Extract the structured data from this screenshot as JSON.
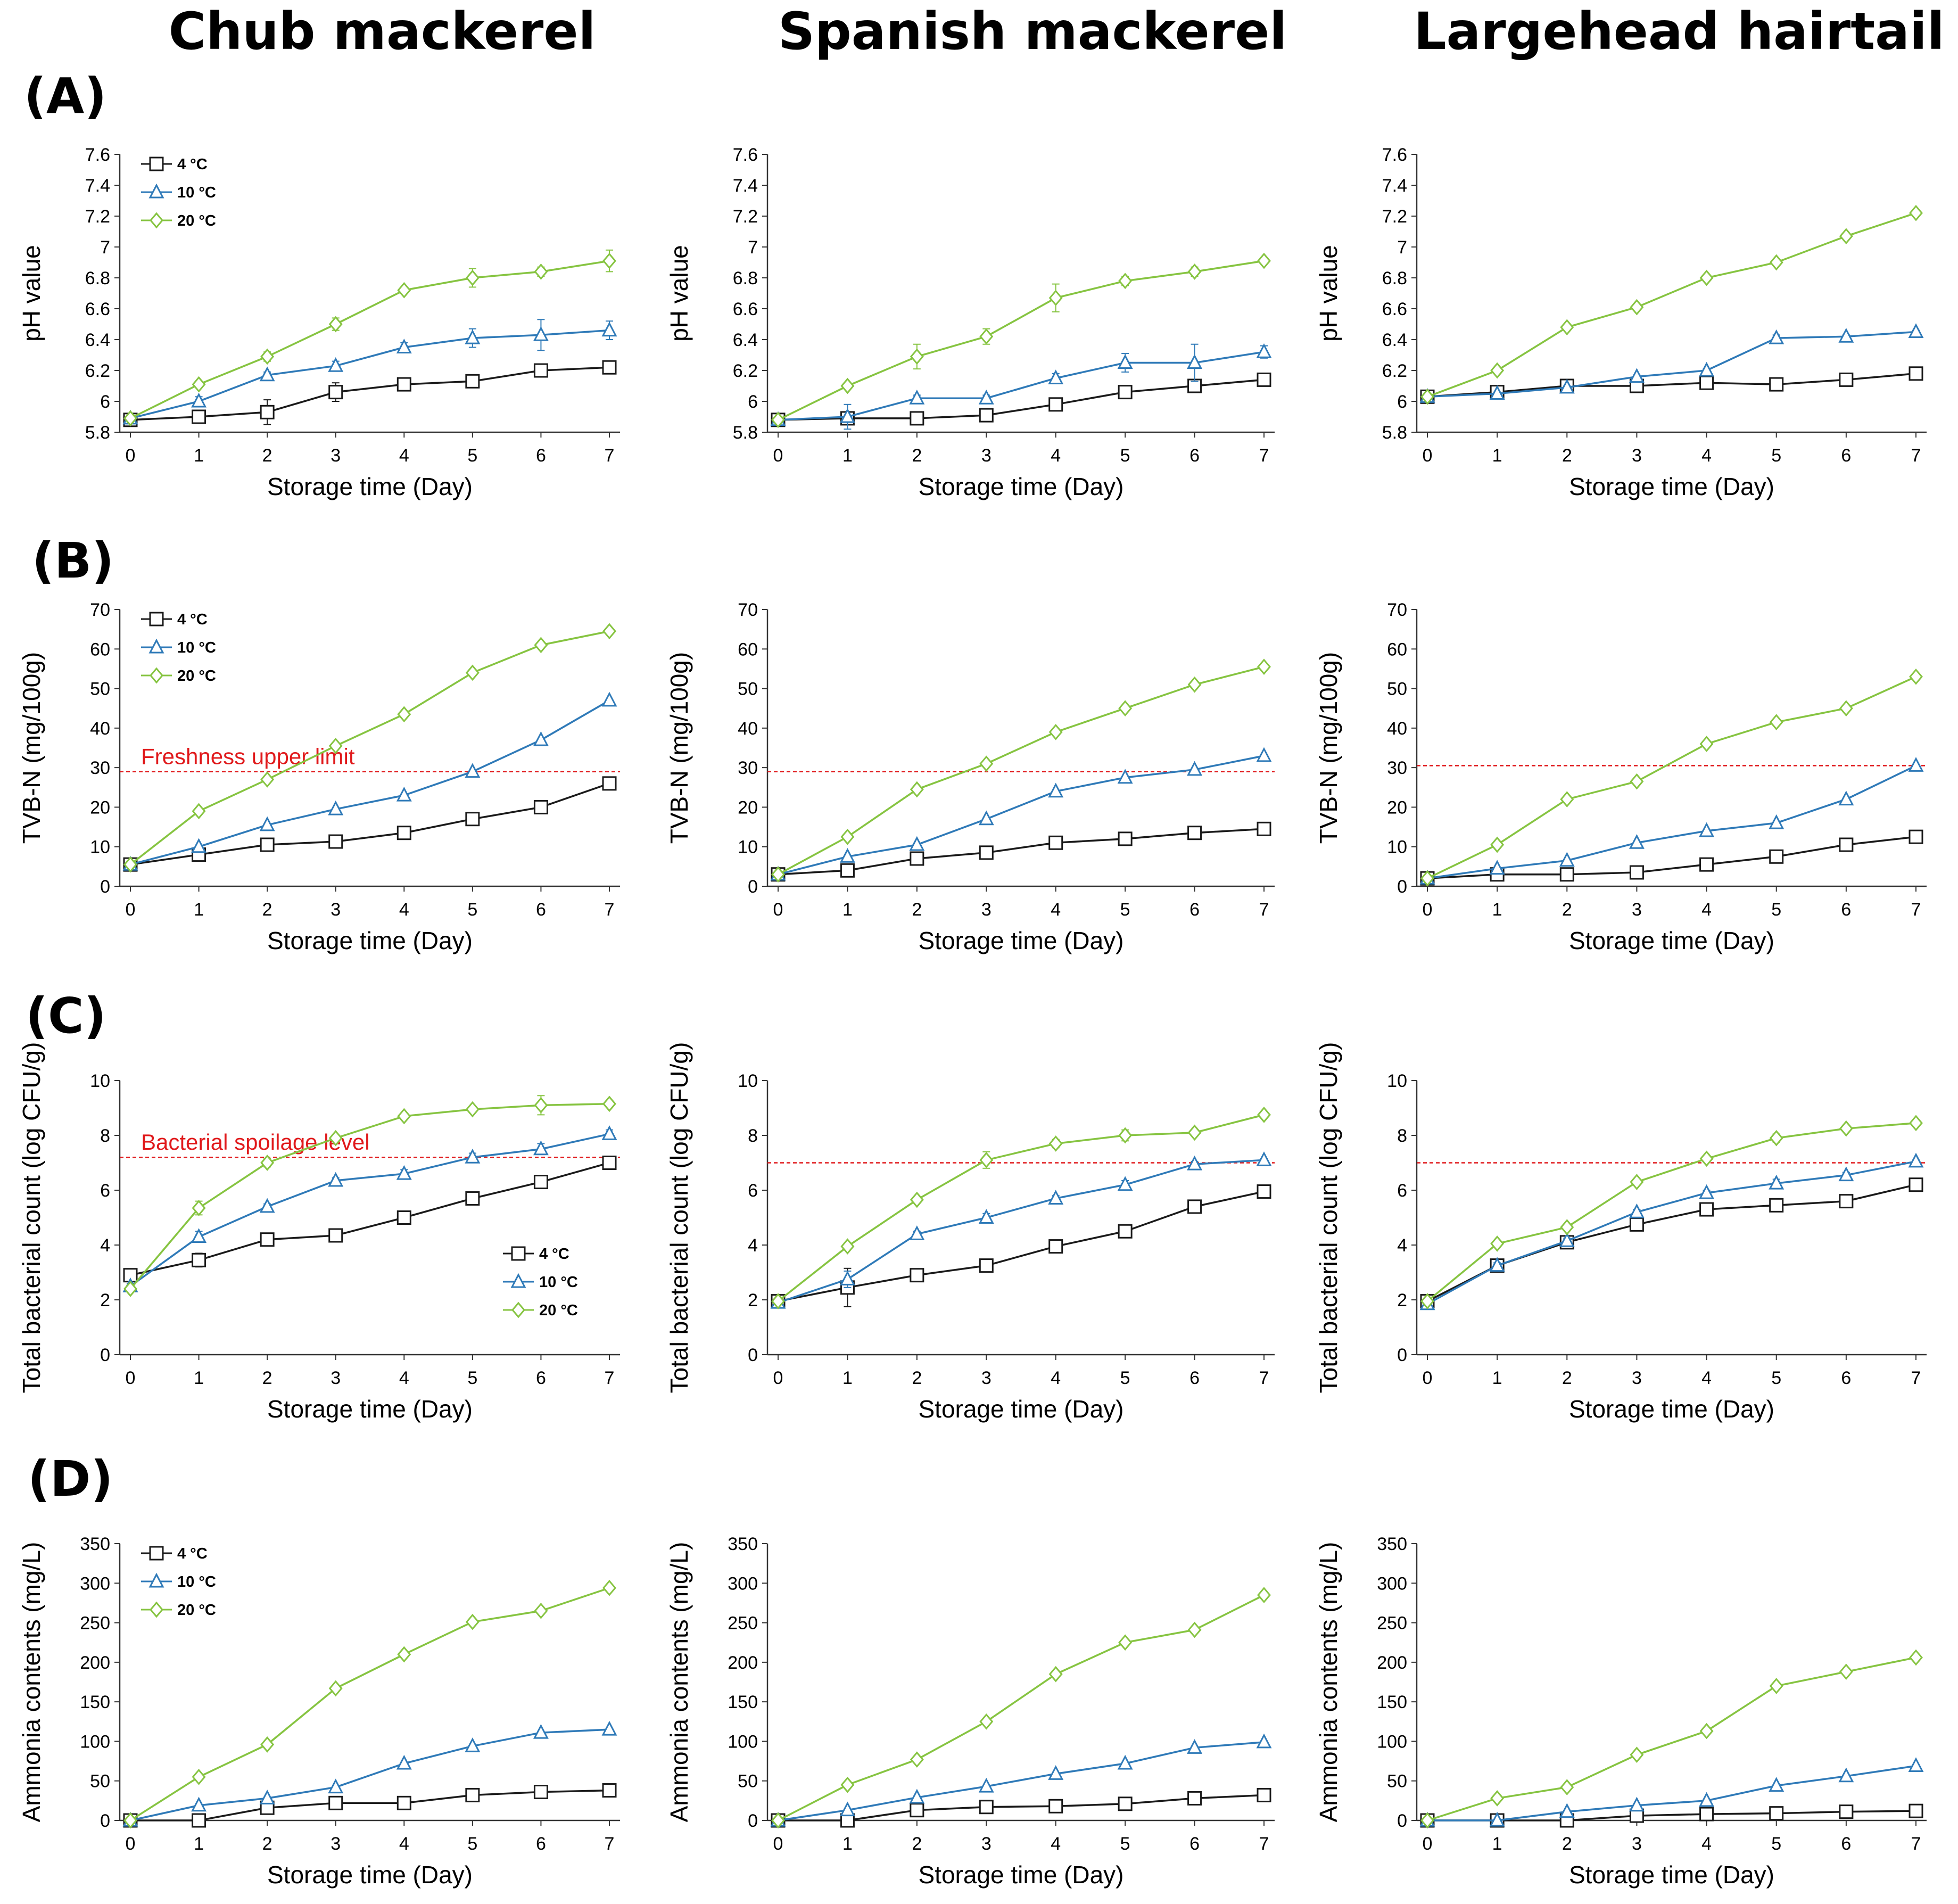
{
  "column_titles": [
    "Chub mackerel",
    "Spanish mackerel",
    "Largehead hairtail"
  ],
  "row_labels": [
    "(A)",
    "(B)",
    "(C)",
    "(D)"
  ],
  "colors": {
    "4 °C": "#1a1a1a",
    "10 °C": "#2f7ab8",
    "20 °C": "#86c441",
    "threshold": "#e0191b"
  },
  "chart_data": [
    {
      "id": "A-chub",
      "type": "line",
      "row": 0,
      "col": 0,
      "xlabel": "Storage time (Day)",
      "ylabel": "pH value",
      "ylim": [
        5.8,
        7.6
      ],
      "yticks": [
        5.8,
        6,
        6.2,
        6.4,
        6.6,
        6.8,
        7,
        7.2,
        7.4,
        7.6
      ],
      "x": [
        0,
        1,
        2,
        3,
        4,
        5,
        6,
        7
      ],
      "legend": "top-left",
      "series": [
        {
          "name": "4 °C",
          "values": [
            5.88,
            5.9,
            5.93,
            6.06,
            6.11,
            6.13,
            6.2,
            6.22
          ],
          "errors": [
            0.01,
            0.03,
            0.08,
            0.06,
            0.04,
            0.03,
            0.03,
            0.02
          ]
        },
        {
          "name": "10 °C",
          "values": [
            5.89,
            6.0,
            6.17,
            6.23,
            6.35,
            6.41,
            6.43,
            6.46
          ],
          "errors": [
            0.01,
            0.03,
            0.02,
            0.03,
            0.03,
            0.06,
            0.1,
            0.06
          ]
        },
        {
          "name": "20 °C",
          "values": [
            5.89,
            6.11,
            6.29,
            6.5,
            6.72,
            6.8,
            6.84,
            6.91
          ],
          "errors": [
            0.01,
            0.02,
            0.03,
            0.04,
            0.02,
            0.06,
            0.03,
            0.07
          ]
        }
      ]
    },
    {
      "id": "A-spanish",
      "type": "line",
      "row": 0,
      "col": 1,
      "xlabel": "Storage time (Day)",
      "ylabel": "pH value",
      "ylim": [
        5.8,
        7.6
      ],
      "yticks": [
        5.8,
        6,
        6.2,
        6.4,
        6.6,
        6.8,
        7,
        7.2,
        7.4,
        7.6
      ],
      "x": [
        0,
        1,
        2,
        3,
        4,
        5,
        6,
        7
      ],
      "legend": "none",
      "series": [
        {
          "name": "4 °C",
          "values": [
            5.88,
            5.89,
            5.89,
            5.91,
            5.98,
            6.06,
            6.1,
            6.14
          ],
          "errors": [
            0.01,
            0.02,
            0.02,
            0.02,
            0.02,
            0.02,
            0.02,
            0.02
          ]
        },
        {
          "name": "10 °C",
          "values": [
            5.88,
            5.9,
            6.02,
            6.02,
            6.15,
            6.25,
            6.25,
            6.32
          ],
          "errors": [
            0.01,
            0.08,
            0.02,
            0.02,
            0.03,
            0.06,
            0.12,
            0.04
          ]
        },
        {
          "name": "20 °C",
          "values": [
            5.88,
            6.1,
            6.29,
            6.42,
            6.67,
            6.78,
            6.84,
            6.91
          ],
          "errors": [
            0.01,
            0.02,
            0.08,
            0.05,
            0.09,
            0.03,
            0.03,
            0.02
          ]
        }
      ]
    },
    {
      "id": "A-hairtail",
      "type": "line",
      "row": 0,
      "col": 2,
      "xlabel": "Storage time (Day)",
      "ylabel": "pH value",
      "ylim": [
        5.8,
        7.6
      ],
      "yticks": [
        5.8,
        6,
        6.2,
        6.4,
        6.6,
        6.8,
        7,
        7.2,
        7.4,
        7.6
      ],
      "x": [
        0,
        1,
        2,
        3,
        4,
        5,
        6,
        7
      ],
      "legend": "none",
      "series": [
        {
          "name": "4 °C",
          "values": [
            6.03,
            6.06,
            6.1,
            6.1,
            6.12,
            6.11,
            6.14,
            6.18
          ],
          "errors": [
            0.01,
            0.02,
            0.02,
            0.02,
            0.02,
            0.02,
            0.02,
            0.02
          ]
        },
        {
          "name": "10 °C",
          "values": [
            6.03,
            6.05,
            6.09,
            6.16,
            6.2,
            6.41,
            6.42,
            6.45
          ],
          "errors": [
            0.01,
            0.01,
            0.01,
            0.01,
            0.01,
            0.02,
            0.01,
            0.01
          ]
        },
        {
          "name": "20 °C",
          "values": [
            6.03,
            6.2,
            6.48,
            6.61,
            6.8,
            6.9,
            7.07,
            7.22
          ],
          "errors": [
            0.01,
            0.01,
            0.01,
            0.01,
            0.02,
            0.02,
            0.01,
            0.01
          ]
        }
      ]
    },
    {
      "id": "B-chub",
      "type": "line",
      "row": 1,
      "col": 0,
      "xlabel": "Storage time (Day)",
      "ylabel": "TVB-N (mg/100g)",
      "ylim": [
        0,
        70
      ],
      "yticks": [
        0,
        10,
        20,
        30,
        40,
        50,
        60,
        70
      ],
      "x": [
        0,
        1,
        2,
        3,
        4,
        5,
        6,
        7
      ],
      "legend": "top-left",
      "threshold": {
        "value": 29,
        "label": "Freshness upper limit"
      },
      "series": [
        {
          "name": "4 °C",
          "values": [
            5.5,
            8,
            10.5,
            11.3,
            13.5,
            17,
            20,
            26
          ]
        },
        {
          "name": "10 °C",
          "values": [
            5.5,
            10,
            15.5,
            19.5,
            23,
            29,
            37,
            47
          ]
        },
        {
          "name": "20 °C",
          "values": [
            5.5,
            19,
            27,
            35.5,
            43.5,
            54,
            61,
            64.5
          ]
        }
      ]
    },
    {
      "id": "B-spanish",
      "type": "line",
      "row": 1,
      "col": 1,
      "xlabel": "Storage time (Day)",
      "ylabel": "TVB-N (mg/100g)",
      "ylim": [
        0,
        70
      ],
      "yticks": [
        0,
        10,
        20,
        30,
        40,
        50,
        60,
        70
      ],
      "x": [
        0,
        1,
        2,
        3,
        4,
        5,
        6,
        7
      ],
      "legend": "none",
      "threshold": {
        "value": 29,
        "label": ""
      },
      "series": [
        {
          "name": "4 °C",
          "values": [
            3,
            4,
            7,
            8.5,
            11,
            12,
            13.5,
            14.5
          ]
        },
        {
          "name": "10 °C",
          "values": [
            3,
            7.5,
            10.5,
            17,
            24,
            27.5,
            29.5,
            33
          ]
        },
        {
          "name": "20 °C",
          "values": [
            3,
            12.5,
            24.5,
            31,
            39,
            45,
            51,
            55.5
          ]
        }
      ]
    },
    {
      "id": "B-hairtail",
      "type": "line",
      "row": 1,
      "col": 2,
      "xlabel": "Storage time (Day)",
      "ylabel": "TVB-N (mg/100g)",
      "ylim": [
        0,
        70
      ],
      "yticks": [
        0,
        10,
        20,
        30,
        40,
        50,
        60,
        70
      ],
      "x": [
        0,
        1,
        2,
        3,
        4,
        5,
        6,
        7
      ],
      "legend": "none",
      "threshold": {
        "value": 30.5,
        "label": ""
      },
      "series": [
        {
          "name": "4 °C",
          "values": [
            2,
            3,
            3,
            3.5,
            5.5,
            7.5,
            10.5,
            12.5
          ]
        },
        {
          "name": "10 °C",
          "values": [
            2,
            4.5,
            6.5,
            11,
            14,
            16,
            22,
            30.5
          ]
        },
        {
          "name": "20 °C",
          "values": [
            2,
            10.5,
            22,
            26.5,
            36,
            41.5,
            45,
            53
          ]
        }
      ]
    },
    {
      "id": "C-chub",
      "type": "line",
      "row": 2,
      "col": 0,
      "xlabel": "Storage time (Day)",
      "ylabel": "Total bacterial count (log CFU/g)",
      "ylim": [
        0,
        10
      ],
      "yticks": [
        0,
        2,
        4,
        6,
        8,
        10
      ],
      "x": [
        0,
        1,
        2,
        3,
        4,
        5,
        6,
        7
      ],
      "legend": "bottom-right",
      "threshold": {
        "value": 7.2,
        "label": "Bacterial spoilage level"
      },
      "series": [
        {
          "name": "4 °C",
          "values": [
            2.9,
            3.45,
            4.2,
            4.35,
            5.0,
            5.7,
            6.3,
            7.0
          ],
          "errors": [
            0.05,
            0.25,
            0.1,
            0.2,
            0.05,
            0.1,
            0.1,
            0.1
          ]
        },
        {
          "name": "10 °C",
          "values": [
            2.5,
            4.3,
            5.4,
            6.35,
            6.6,
            7.2,
            7.5,
            8.05
          ],
          "errors": [
            0.1,
            0.2,
            0.1,
            0.1,
            0.15,
            0.15,
            0.2,
            0.15
          ]
        },
        {
          "name": "20 °C",
          "values": [
            2.4,
            5.35,
            7.0,
            7.9,
            8.7,
            8.95,
            9.1,
            9.15
          ],
          "errors": [
            0.1,
            0.25,
            0.15,
            0.1,
            0.1,
            0.1,
            0.35,
            0.1
          ]
        }
      ]
    },
    {
      "id": "C-spanish",
      "type": "line",
      "row": 2,
      "col": 1,
      "xlabel": "Storage time (Day)",
      "ylabel": "Total bacterial count (log CFU/g)",
      "ylim": [
        0,
        10
      ],
      "yticks": [
        0,
        2,
        4,
        6,
        8,
        10
      ],
      "x": [
        0,
        1,
        2,
        3,
        4,
        5,
        6,
        7
      ],
      "legend": "none",
      "threshold": {
        "value": 7.0,
        "label": ""
      },
      "series": [
        {
          "name": "4 °C",
          "values": [
            1.95,
            2.45,
            2.9,
            3.25,
            3.95,
            4.5,
            5.4,
            5.95
          ],
          "errors": [
            0.05,
            0.7,
            0.1,
            0.2,
            0.1,
            0.1,
            0.1,
            0.1
          ]
        },
        {
          "name": "10 °C",
          "values": [
            1.9,
            2.75,
            4.4,
            5.0,
            5.7,
            6.2,
            6.95,
            7.1
          ],
          "errors": [
            0.05,
            0.3,
            0.1,
            0.15,
            0.1,
            0.15,
            0.1,
            0.05
          ]
        },
        {
          "name": "20 °C",
          "values": [
            1.95,
            3.95,
            5.65,
            7.1,
            7.7,
            8.0,
            8.1,
            8.75
          ],
          "errors": [
            0.05,
            0.1,
            0.1,
            0.3,
            0.15,
            0.2,
            0.1,
            0.1
          ]
        }
      ]
    },
    {
      "id": "C-hairtail",
      "type": "line",
      "row": 2,
      "col": 2,
      "xlabel": "Storage time (Day)",
      "ylabel": "Total bacterial count (log CFU/g)",
      "ylim": [
        0,
        10
      ],
      "yticks": [
        0,
        2,
        4,
        6,
        8,
        10
      ],
      "x": [
        0,
        1,
        2,
        3,
        4,
        5,
        6,
        7
      ],
      "legend": "none",
      "threshold": {
        "value": 7.0,
        "label": ""
      },
      "series": [
        {
          "name": "4 °C",
          "values": [
            1.95,
            3.25,
            4.1,
            4.75,
            5.3,
            5.45,
            5.6,
            6.2
          ],
          "errors": [
            0.05,
            0.1,
            0.1,
            0.1,
            0.1,
            0.1,
            0.1,
            0.1
          ]
        },
        {
          "name": "10 °C",
          "values": [
            1.85,
            3.25,
            4.15,
            5.2,
            5.9,
            6.25,
            6.55,
            7.05
          ],
          "errors": [
            0.05,
            0.1,
            0.1,
            0.1,
            0.1,
            0.15,
            0.1,
            0.05
          ]
        },
        {
          "name": "20 °C",
          "values": [
            1.95,
            4.05,
            4.65,
            6.3,
            7.15,
            7.9,
            8.25,
            8.45
          ],
          "errors": [
            0.05,
            0.1,
            0.1,
            0.1,
            0.1,
            0.15,
            0.1,
            0.1
          ]
        }
      ]
    },
    {
      "id": "D-chub",
      "type": "line",
      "row": 3,
      "col": 0,
      "xlabel": "Storage time (Day)",
      "ylabel": "Ammonia contents (mg/L)",
      "ylim": [
        0,
        350
      ],
      "yticks": [
        0,
        50,
        100,
        150,
        200,
        250,
        300,
        350
      ],
      "x": [
        0,
        1,
        2,
        3,
        4,
        5,
        6,
        7
      ],
      "legend": "top-left",
      "series": [
        {
          "name": "4 °C",
          "values": [
            0,
            0,
            16,
            22,
            22,
            32,
            36,
            38
          ]
        },
        {
          "name": "10 °C",
          "values": [
            0,
            19,
            28,
            42,
            72,
            94,
            111,
            115
          ]
        },
        {
          "name": "20 °C",
          "values": [
            0,
            55,
            96,
            167,
            210,
            251,
            265,
            294
          ]
        }
      ]
    },
    {
      "id": "D-spanish",
      "type": "line",
      "row": 3,
      "col": 1,
      "xlabel": "Storage time (Day)",
      "ylabel": "Ammonia contents (mg/L)",
      "ylim": [
        0,
        350
      ],
      "yticks": [
        0,
        50,
        100,
        150,
        200,
        250,
        300,
        350
      ],
      "x": [
        0,
        1,
        2,
        3,
        4,
        5,
        6,
        7
      ],
      "legend": "none",
      "series": [
        {
          "name": "4 °C",
          "values": [
            0,
            0,
            13,
            17,
            18,
            21,
            28,
            32
          ]
        },
        {
          "name": "10 °C",
          "values": [
            0,
            13,
            29,
            43,
            59,
            72,
            92,
            99
          ]
        },
        {
          "name": "20 °C",
          "values": [
            0,
            45,
            77,
            125,
            185,
            225,
            241,
            285
          ]
        }
      ]
    },
    {
      "id": "D-hairtail",
      "type": "line",
      "row": 3,
      "col": 2,
      "xlabel": "Storage time (Day)",
      "ylabel": "Ammonia contents (mg/L)",
      "ylim": [
        0,
        350
      ],
      "yticks": [
        0,
        50,
        100,
        150,
        200,
        250,
        300,
        350
      ],
      "x": [
        0,
        1,
        2,
        3,
        4,
        5,
        6,
        7
      ],
      "legend": "none",
      "series": [
        {
          "name": "4 °C",
          "values": [
            0,
            0,
            0,
            6,
            8,
            9,
            11,
            12
          ]
        },
        {
          "name": "10 °C",
          "values": [
            0,
            0,
            11,
            19,
            25,
            44,
            56,
            69
          ]
        },
        {
          "name": "20 °C",
          "values": [
            0,
            28,
            42,
            83,
            113,
            170,
            188,
            206
          ]
        }
      ]
    }
  ]
}
